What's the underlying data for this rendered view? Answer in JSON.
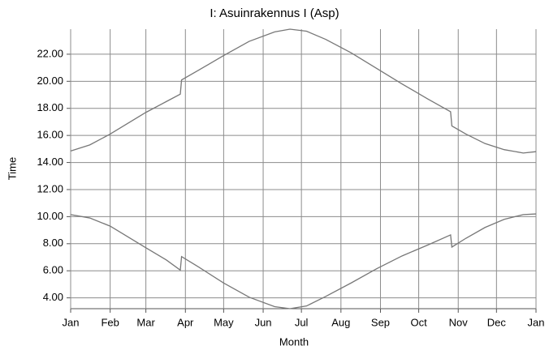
{
  "chart_data": {
    "type": "line",
    "title": "I: Asuinrakennus I (Asp)",
    "xlabel": "Month",
    "ylabel": "Time",
    "x": [
      0,
      15,
      31,
      45,
      59,
      75,
      86,
      87,
      100,
      120,
      140,
      160,
      172,
      185,
      200,
      220,
      240,
      260,
      280,
      298,
      299,
      310,
      325,
      340,
      355,
      365
    ],
    "series": [
      {
        "color": "#777777",
        "values": [
          14.85,
          15.3,
          16.1,
          16.9,
          17.7,
          18.5,
          19.05,
          20.1,
          20.8,
          21.9,
          22.95,
          23.65,
          23.85,
          23.7,
          23.1,
          22.1,
          20.95,
          19.8,
          18.7,
          17.75,
          16.7,
          16.1,
          15.4,
          14.95,
          14.7,
          14.8
        ]
      },
      {
        "color": "#777777",
        "values": [
          10.15,
          9.9,
          9.3,
          8.5,
          7.7,
          6.8,
          6.05,
          7.05,
          6.3,
          5.1,
          4.05,
          3.35,
          3.2,
          3.4,
          4.1,
          5.1,
          6.15,
          7.1,
          7.9,
          8.65,
          7.75,
          8.4,
          9.2,
          9.8,
          10.15,
          10.2
        ]
      }
    ],
    "xlim": [
      0,
      365
    ],
    "xticks": [
      {
        "value": 0,
        "label": "Jan"
      },
      {
        "value": 31,
        "label": "Feb"
      },
      {
        "value": 59,
        "label": "Mar"
      },
      {
        "value": 90,
        "label": "Apr"
      },
      {
        "value": 120,
        "label": "May"
      },
      {
        "value": 151,
        "label": "Jun"
      },
      {
        "value": 181,
        "label": "Jul"
      },
      {
        "value": 212,
        "label": "Aug"
      },
      {
        "value": 243,
        "label": "Sep"
      },
      {
        "value": 273,
        "label": "Oct"
      },
      {
        "value": 304,
        "label": "Nov"
      },
      {
        "value": 334,
        "label": "Dec"
      },
      {
        "value": 365,
        "label": "Jan"
      }
    ],
    "ylim": [
      3.2,
      23.85
    ],
    "yticks": [
      {
        "value": 4,
        "label": "4.00"
      },
      {
        "value": 6,
        "label": "6.00"
      },
      {
        "value": 8,
        "label": "8.00"
      },
      {
        "value": 10,
        "label": "10.00"
      },
      {
        "value": 12,
        "label": "12.00"
      },
      {
        "value": 14,
        "label": "14.00"
      },
      {
        "value": 16,
        "label": "16.00"
      },
      {
        "value": 18,
        "label": "18.00"
      },
      {
        "value": 20,
        "label": "20.00"
      },
      {
        "value": 22,
        "label": "22.00"
      }
    ],
    "grid": true
  }
}
